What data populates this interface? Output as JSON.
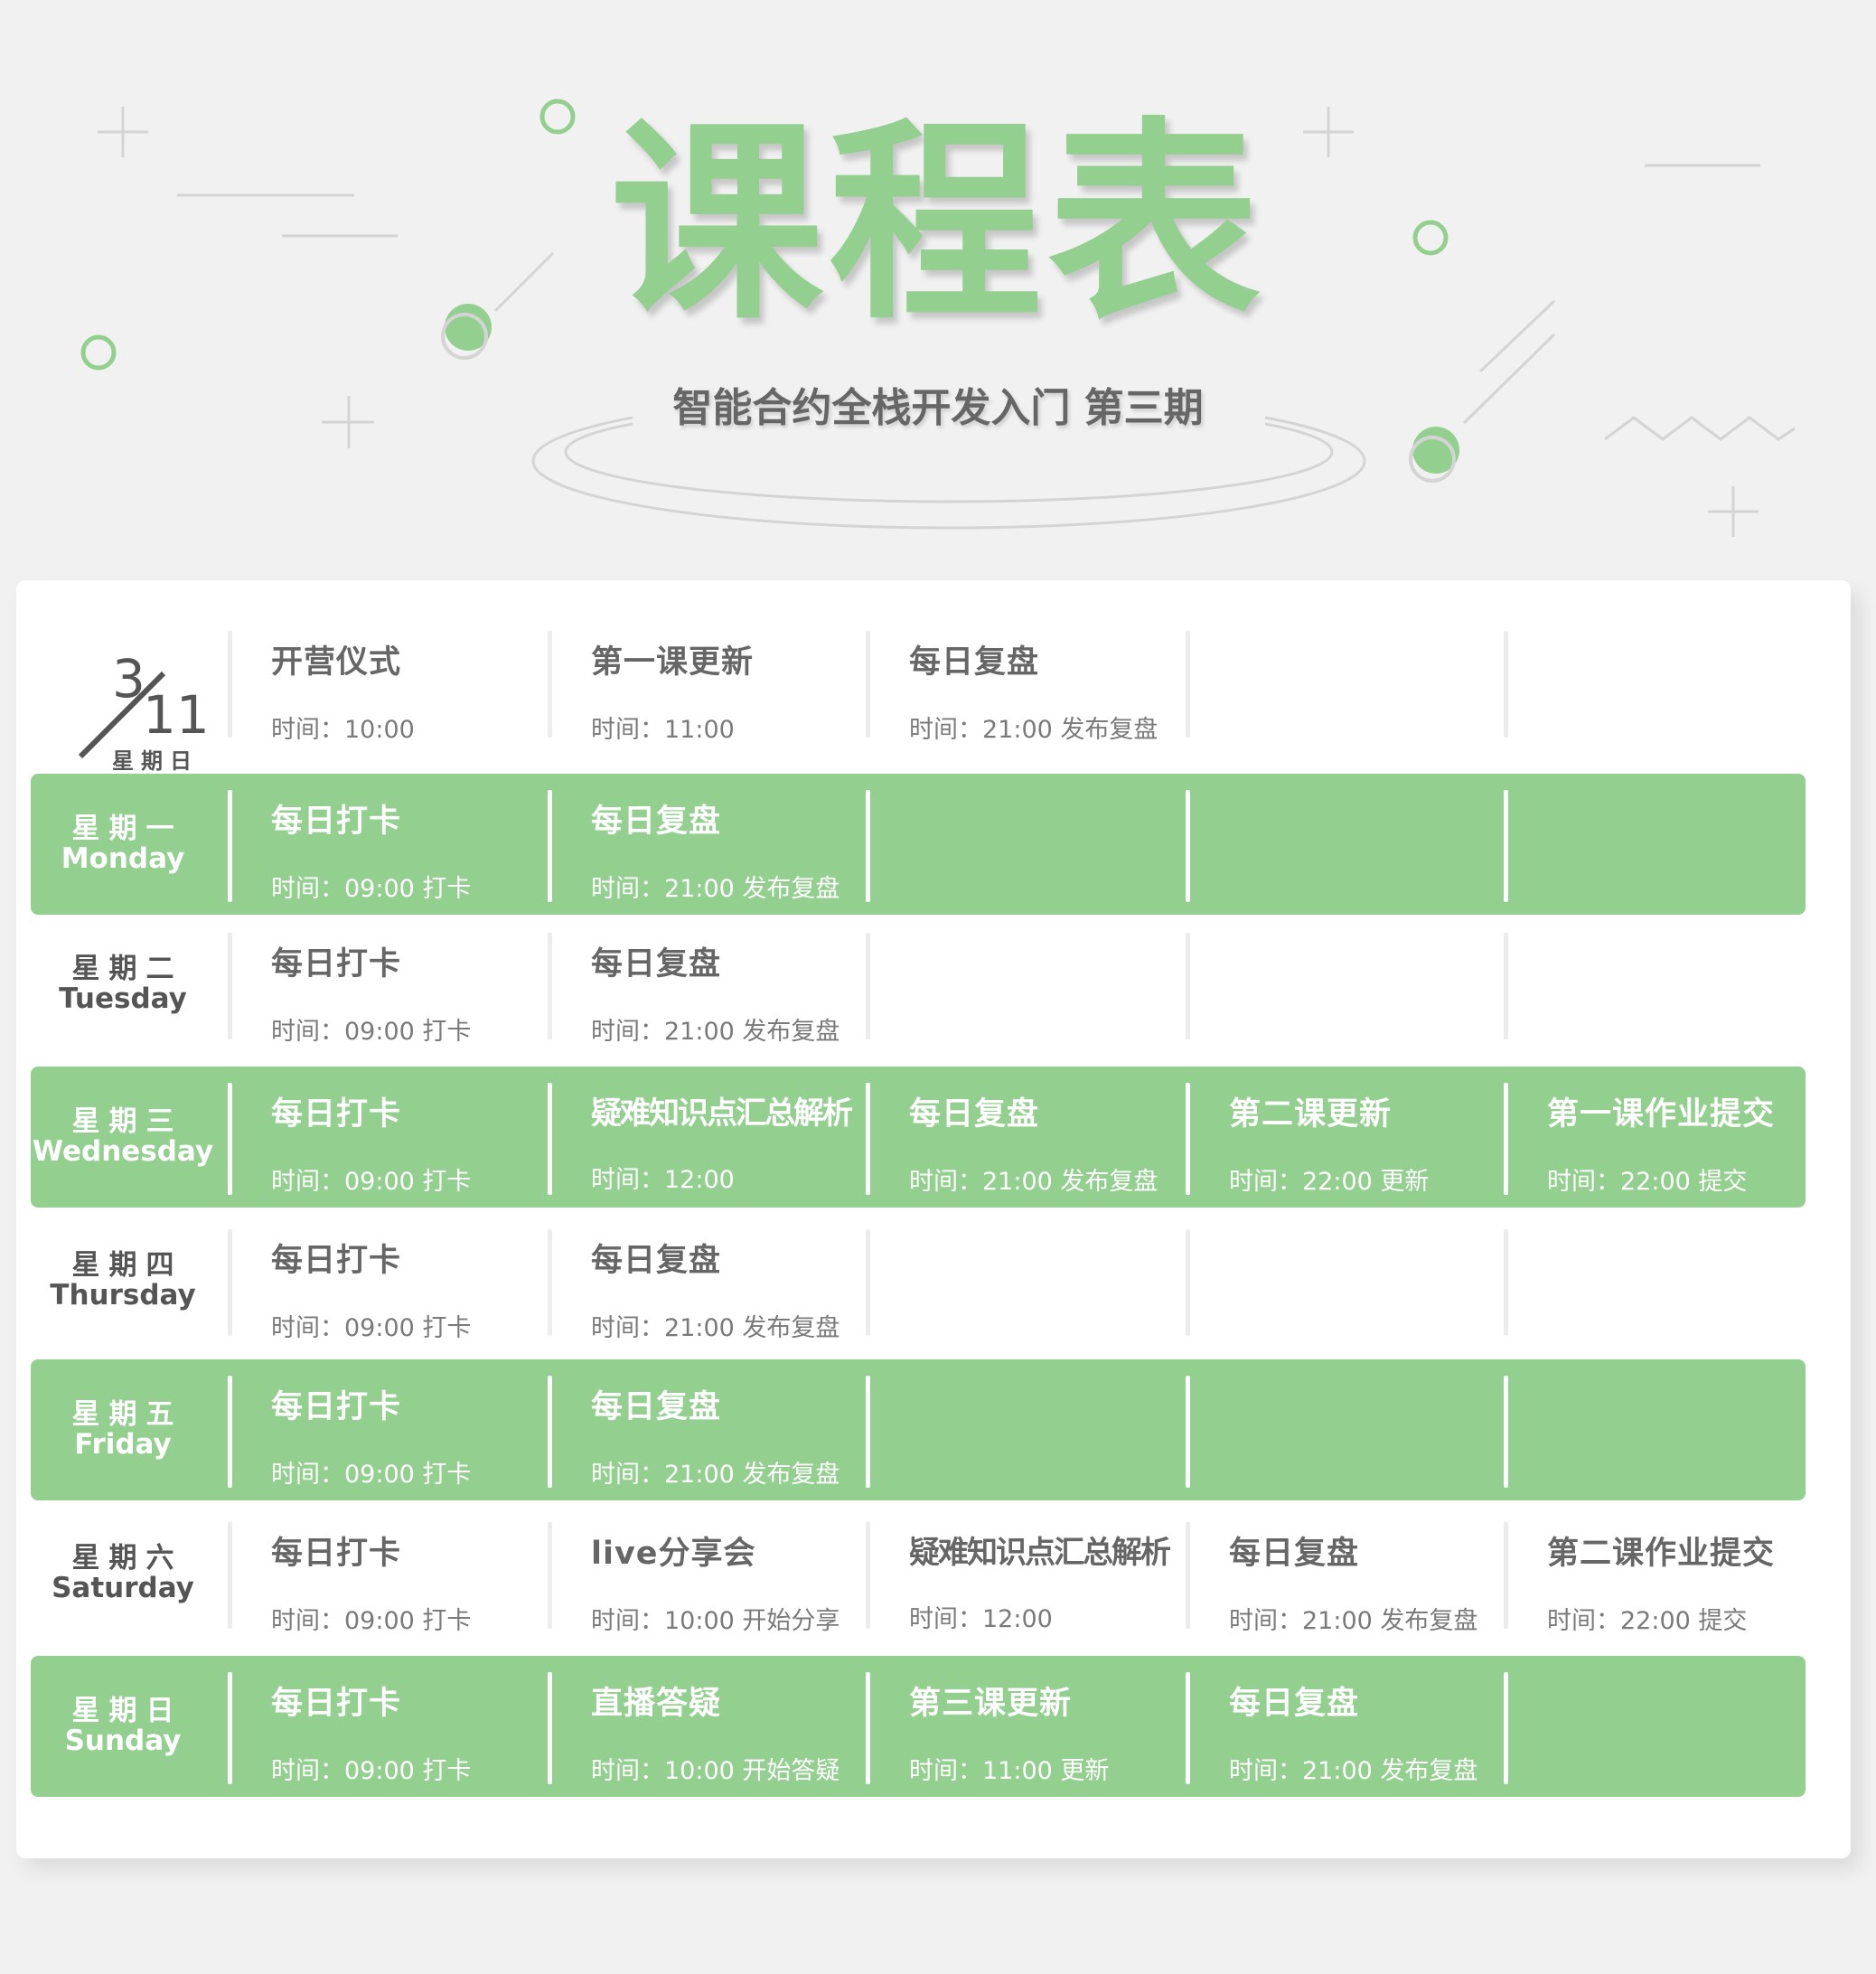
{
  "theme": {
    "accent": "#93cf8f",
    "text": "#666666"
  },
  "header": {
    "title": "课程表",
    "subtitle": "智能合约全栈开发入门 第三期"
  },
  "start_date": {
    "month": "3",
    "day": "11",
    "weekday": "星期日"
  },
  "rows": [
    {
      "cn": "",
      "en": "",
      "highlight": false,
      "events": [
        {
          "title": "开营仪式",
          "time": "时间：10:00"
        },
        {
          "title": "第一课更新",
          "time": "时间：11:00"
        },
        {
          "title": "每日复盘",
          "time": "时间：21:00 发布复盘"
        },
        null,
        null
      ]
    },
    {
      "cn": "星期一",
      "en": "Monday",
      "highlight": true,
      "events": [
        {
          "title": "每日打卡",
          "time": "时间：09:00 打卡"
        },
        {
          "title": "每日复盘",
          "time": "时间：21:00 发布复盘"
        },
        null,
        null,
        null
      ]
    },
    {
      "cn": "星期二",
      "en": "Tuesday",
      "highlight": false,
      "events": [
        {
          "title": "每日打卡",
          "time": "时间：09:00 打卡"
        },
        {
          "title": "每日复盘",
          "time": "时间：21:00 发布复盘"
        },
        null,
        null,
        null
      ]
    },
    {
      "cn": "星期三",
      "en": "Wednesday",
      "highlight": true,
      "events": [
        {
          "title": "每日打卡",
          "time": "时间：09:00 打卡"
        },
        {
          "title": "疑难知识点汇总解析",
          "time": "时间：12:00"
        },
        {
          "title": "每日复盘",
          "time": "时间：21:00 发布复盘"
        },
        {
          "title": "第二课更新",
          "time": "时间：22:00 更新"
        },
        {
          "title": "第一课作业提交",
          "time": "时间：22:00 提交"
        }
      ]
    },
    {
      "cn": "星期四",
      "en": "Thursday",
      "highlight": false,
      "events": [
        {
          "title": "每日打卡",
          "time": "时间：09:00 打卡"
        },
        {
          "title": "每日复盘",
          "time": "时间：21:00 发布复盘"
        },
        null,
        null,
        null
      ]
    },
    {
      "cn": "星期五",
      "en": "Friday",
      "highlight": true,
      "events": [
        {
          "title": "每日打卡",
          "time": "时间：09:00 打卡"
        },
        {
          "title": "每日复盘",
          "time": "时间：21:00 发布复盘"
        },
        null,
        null,
        null
      ]
    },
    {
      "cn": "星期六",
      "en": "Saturday",
      "highlight": false,
      "events": [
        {
          "title": "每日打卡",
          "time": "时间：09:00 打卡"
        },
        {
          "title": "live分享会",
          "time": "时间：10:00 开始分享"
        },
        {
          "title": "疑难知识点汇总解析",
          "time": "时间：12:00"
        },
        {
          "title": "每日复盘",
          "time": "时间：21:00 发布复盘"
        },
        {
          "title": "第二课作业提交",
          "time": "时间：22:00 提交"
        }
      ]
    },
    {
      "cn": "星期日",
      "en": "Sunday",
      "highlight": true,
      "events": [
        {
          "title": "每日打卡",
          "time": "时间：09:00 打卡"
        },
        {
          "title": "直播答疑",
          "time": "时间：10:00 开始答疑"
        },
        {
          "title": "第三课更新",
          "time": "时间：11:00 更新"
        },
        {
          "title": "每日复盘",
          "time": "时间：21:00 发布复盘"
        },
        null
      ]
    }
  ]
}
